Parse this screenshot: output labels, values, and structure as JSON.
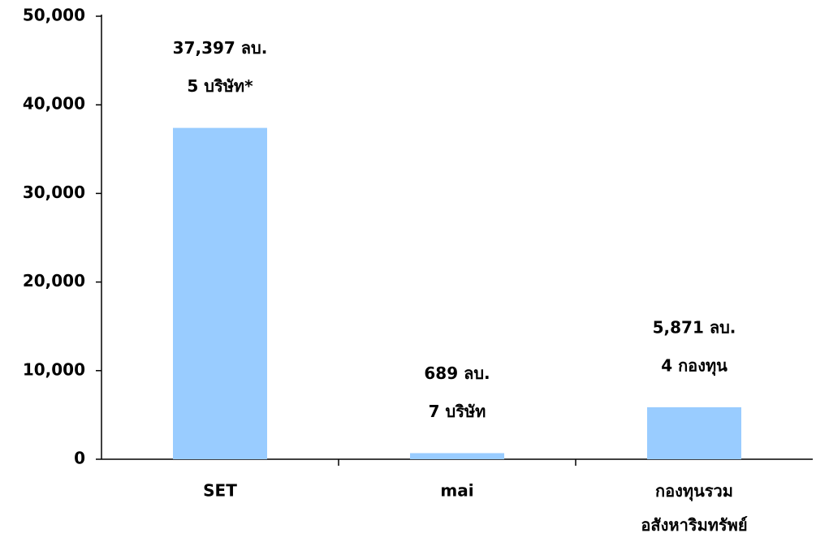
{
  "chart_data": {
    "type": "bar",
    "categories": [
      "SET",
      "mai",
      "กองทุนรวม\nอสังหาริมทรัพย์"
    ],
    "values": [
      37397,
      689,
      5871
    ],
    "value_labels": [
      "37,397 ลบ.",
      "689 ลบ.",
      "5,871 ลบ."
    ],
    "annotations": [
      "5 บริษัท*",
      "7 บริษัท",
      "4 กองทุน"
    ],
    "color": "#99ccff",
    "ylim": [
      0,
      50000
    ],
    "yticks": [
      0,
      {
        "value": 10000,
        "label": "10,000"
      },
      {
        "value": 20000,
        "label": "20,000"
      },
      {
        "value": 30000,
        "label": "30,000"
      },
      {
        "value": 40000,
        "label": "40,000"
      },
      {
        "value": 50000,
        "label": "50,000"
      }
    ],
    "grid": false
  }
}
